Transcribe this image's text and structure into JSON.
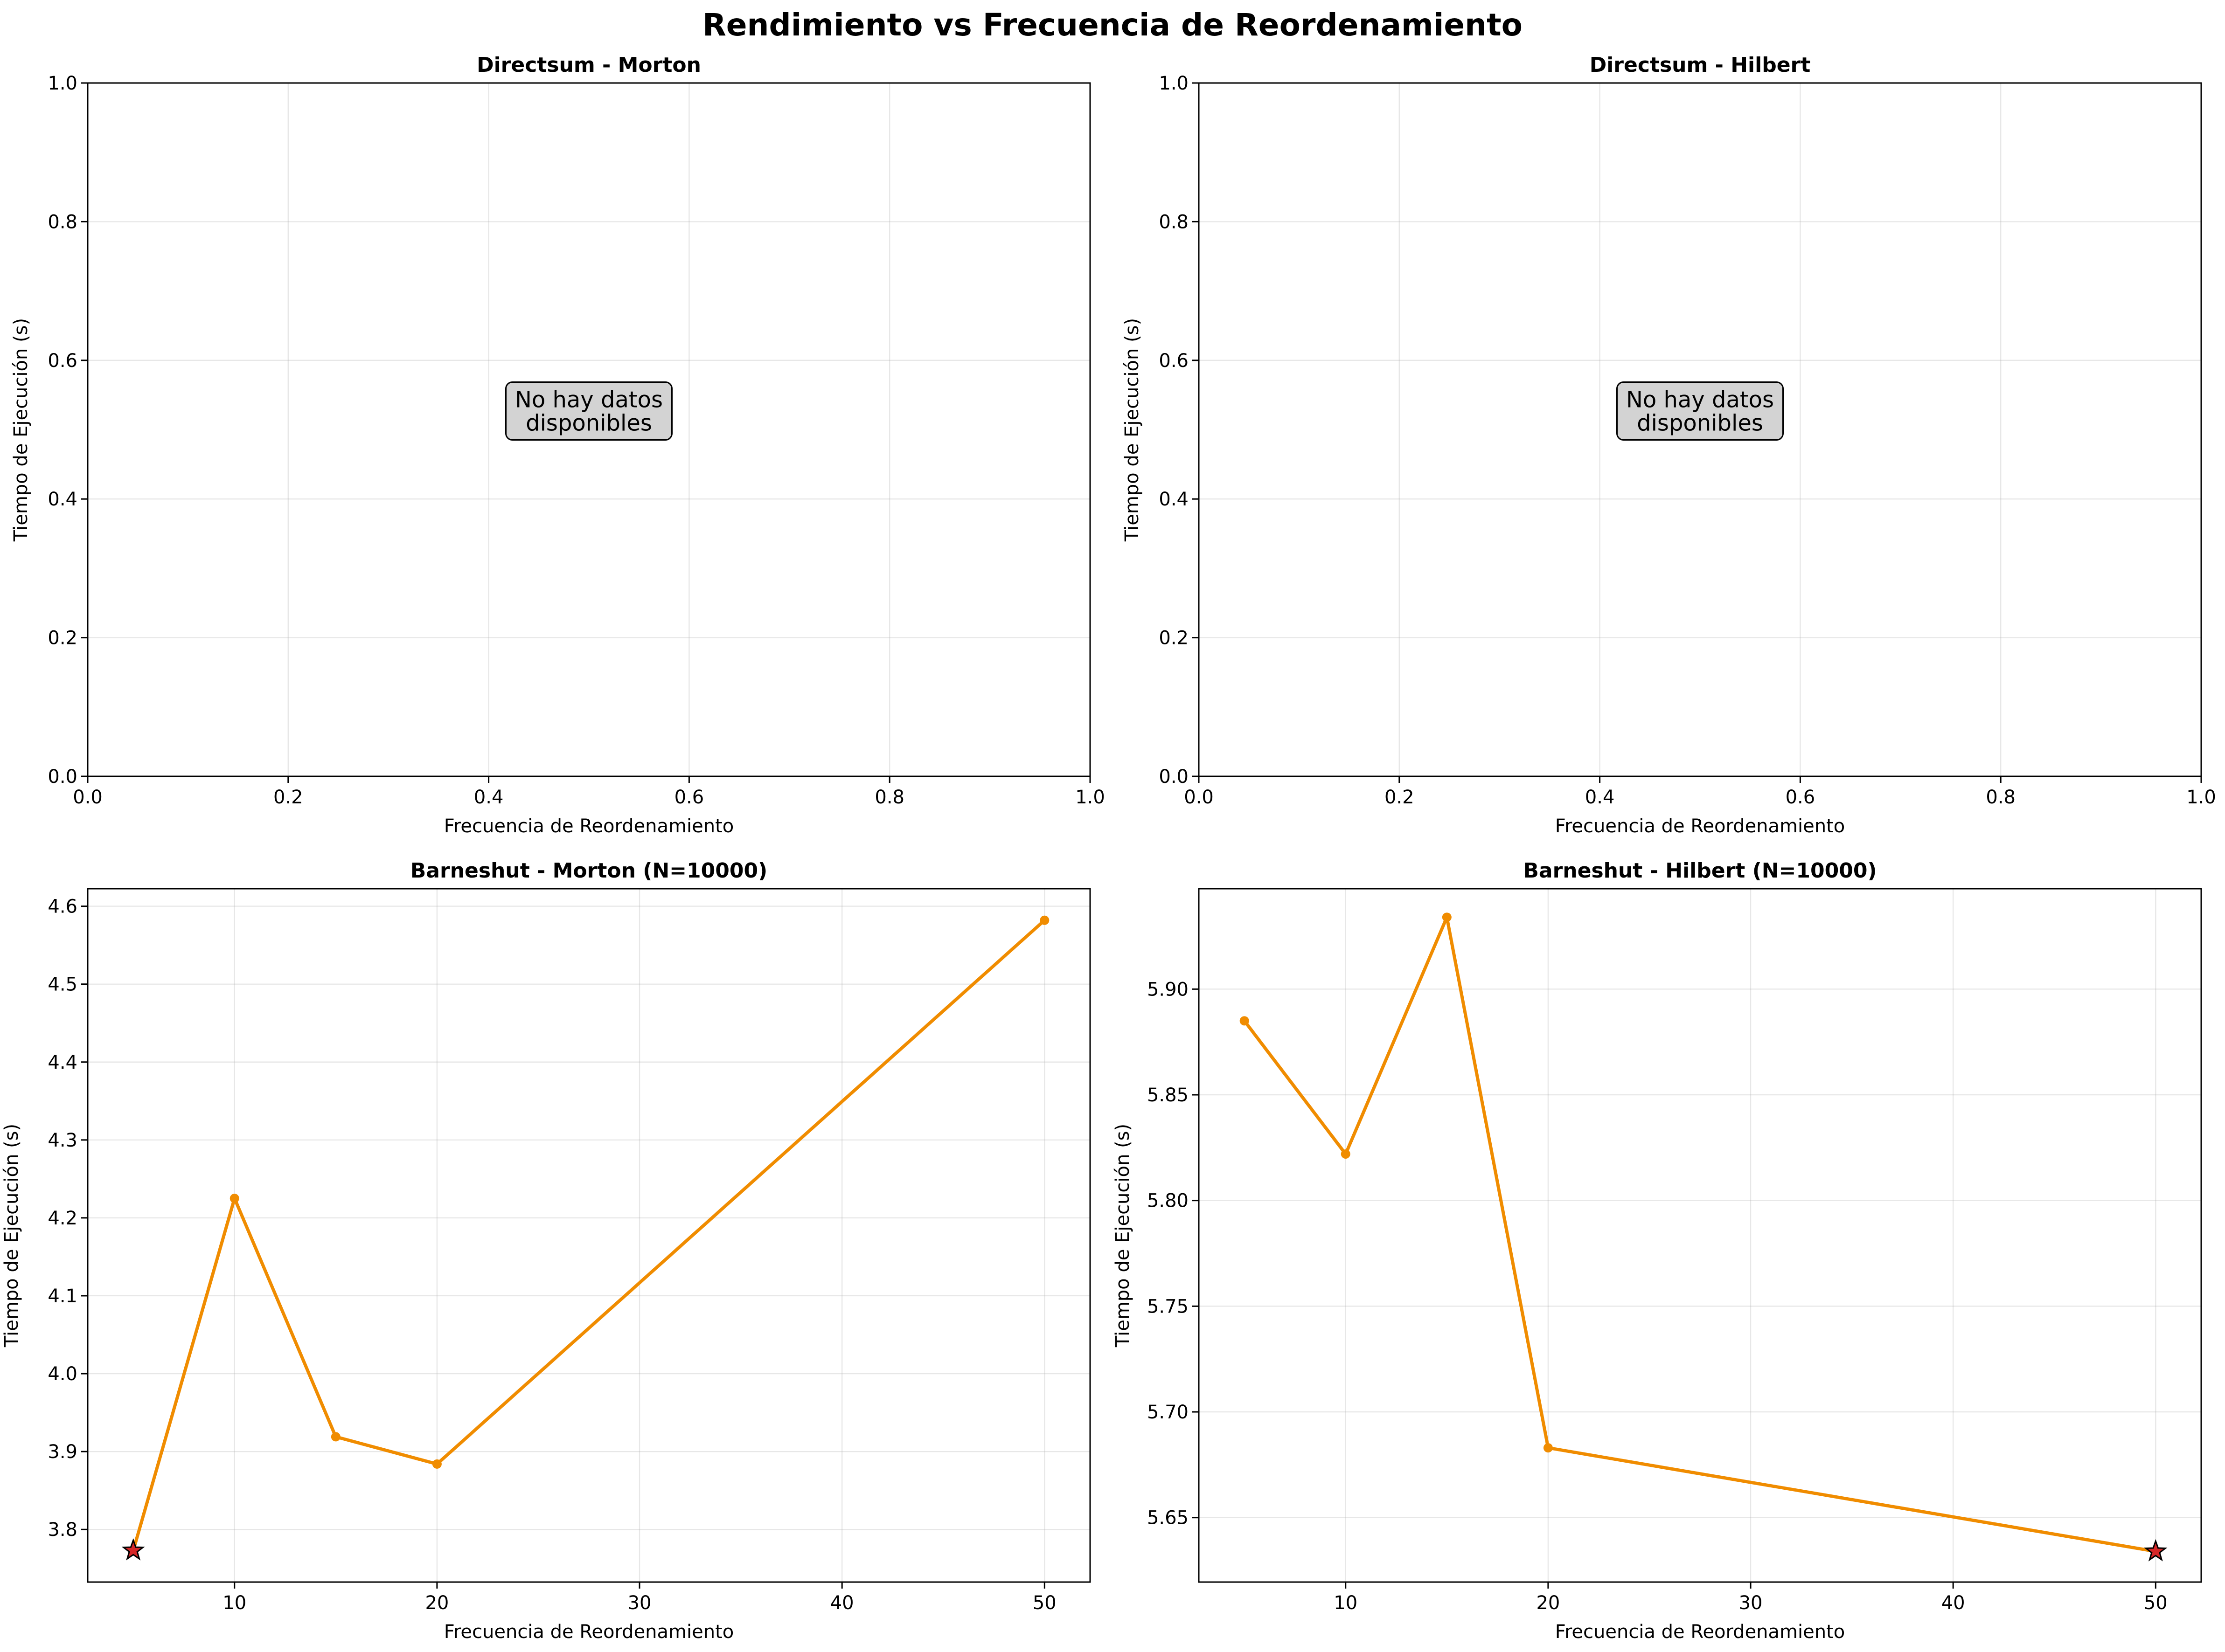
{
  "figure": {
    "title": "Rendimiento vs Frecuencia de Reordenamiento"
  },
  "chart_data": [
    {
      "type": "line",
      "title": "Directsum - Morton",
      "xlabel": "Frecuencia de Reordenamiento",
      "ylabel": "Tiempo de Ejecución (s)",
      "xlim": [
        0,
        1
      ],
      "ylim": [
        0,
        1
      ],
      "xticks": [
        0.0,
        0.2,
        0.4,
        0.6,
        0.8,
        1.0
      ],
      "xtick_labels": [
        "0.0",
        "0.2",
        "0.4",
        "0.6",
        "0.8",
        "1.0"
      ],
      "yticks": [
        0.0,
        0.2,
        0.4,
        0.6,
        0.8,
        1.0
      ],
      "ytick_labels": [
        "0.0",
        "0.2",
        "0.4",
        "0.6",
        "0.8",
        "1.0"
      ],
      "grid": true,
      "x": [],
      "y": [],
      "annotation": [
        "No hay datos",
        "disponibles"
      ],
      "color": "#f08c00"
    },
    {
      "type": "line",
      "title": "Directsum - Hilbert",
      "xlabel": "Frecuencia de Reordenamiento",
      "ylabel": "Tiempo de Ejecución (s)",
      "xlim": [
        0,
        1
      ],
      "ylim": [
        0,
        1
      ],
      "xticks": [
        0.0,
        0.2,
        0.4,
        0.6,
        0.8,
        1.0
      ],
      "xtick_labels": [
        "0.0",
        "0.2",
        "0.4",
        "0.6",
        "0.8",
        "1.0"
      ],
      "yticks": [
        0.0,
        0.2,
        0.4,
        0.6,
        0.8,
        1.0
      ],
      "ytick_labels": [
        "0.0",
        "0.2",
        "0.4",
        "0.6",
        "0.8",
        "1.0"
      ],
      "grid": true,
      "x": [],
      "y": [],
      "annotation": [
        "No hay datos",
        "disponibles"
      ],
      "color": "#f08c00"
    },
    {
      "type": "line",
      "title": "Barneshut - Morton (N=10000)",
      "xlabel": "Frecuencia de Reordenamiento",
      "ylabel": "Tiempo de Ejecución (s)",
      "xlim": [
        2.75,
        52.25
      ],
      "ylim": [
        3.7325,
        4.6225
      ],
      "xticks": [
        10,
        20,
        30,
        40,
        50
      ],
      "xtick_labels": [
        "10",
        "20",
        "30",
        "40",
        "50"
      ],
      "yticks": [
        3.8,
        3.9,
        4.0,
        4.1,
        4.2,
        4.3,
        4.4,
        4.5,
        4.6
      ],
      "ytick_labels": [
        "3.8",
        "3.9",
        "4.0",
        "4.1",
        "4.2",
        "4.3",
        "4.4",
        "4.5",
        "4.6"
      ],
      "grid": true,
      "x": [
        5,
        10,
        15,
        20,
        50
      ],
      "y": [
        3.773,
        4.225,
        3.919,
        3.884,
        4.582
      ],
      "best_index": 0,
      "color": "#f08c00",
      "best_color": "#d62728"
    },
    {
      "type": "line",
      "title": "Barneshut - Hilbert (N=10000)",
      "xlabel": "Frecuencia de Reordenamiento",
      "ylabel": "Tiempo de Ejecución (s)",
      "xlim": [
        2.75,
        52.25
      ],
      "ylim": [
        5.6195,
        5.9475
      ],
      "xticks": [
        10,
        20,
        30,
        40,
        50
      ],
      "xtick_labels": [
        "10",
        "20",
        "30",
        "40",
        "50"
      ],
      "yticks": [
        5.65,
        5.7,
        5.75,
        5.8,
        5.85,
        5.9
      ],
      "ytick_labels": [
        "5.65",
        "5.70",
        "5.75",
        "5.80",
        "5.85",
        "5.90"
      ],
      "grid": true,
      "x": [
        5,
        10,
        15,
        20,
        50
      ],
      "y": [
        5.885,
        5.822,
        5.934,
        5.683,
        5.634
      ],
      "best_index": 4,
      "color": "#f08c00",
      "best_color": "#d62728"
    }
  ]
}
